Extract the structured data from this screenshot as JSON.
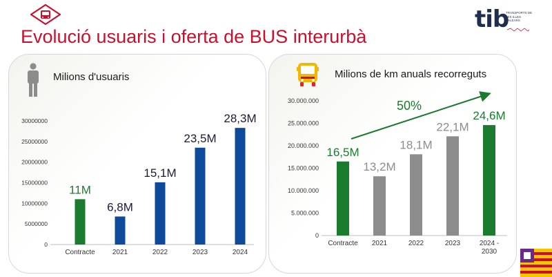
{
  "header": {
    "title": "Evolució usuaris i oferta de BUS interurbà",
    "logo_icon": "bus-sign-icon",
    "brand": {
      "name": "tib",
      "subtitle": "TRANSPORTS DE LES ILLES BALEARS"
    }
  },
  "colors": {
    "title": "#c8102e",
    "green": "#1a7a2e",
    "blue": "#0d4a99",
    "gray": "#8c8c8c"
  },
  "chart_data": [
    {
      "type": "bar",
      "title": "Milions d'usuaris",
      "icon": "person-icon",
      "categories": [
        "Contracte",
        "2021",
        "2022",
        "2023",
        "2024"
      ],
      "values": [
        11000000,
        6800000,
        15100000,
        23500000,
        28300000
      ],
      "data_labels": [
        "11M",
        "6,8M",
        "15,1M",
        "23,5M",
        "28,3M"
      ],
      "colors": [
        "#1a7a2e",
        "#0d4a99",
        "#0d4a99",
        "#0d4a99",
        "#0d4a99"
      ],
      "label_colors": [
        "#1a7a2e",
        "#1a1a3a",
        "#1a1a3a",
        "#1a1a3a",
        "#1a1a3a"
      ],
      "yticks": [
        0,
        5000000,
        10000000,
        15000000,
        20000000,
        25000000,
        30000000
      ],
      "ytick_labels": [
        "0",
        "5000000",
        "10000000",
        "15000000",
        "20000000",
        "25000000",
        "30000000"
      ],
      "ylim": [
        0,
        30000000
      ],
      "grid": false
    },
    {
      "type": "bar",
      "title": "Milions de km anuals recorreguts",
      "icon": "bus-icon",
      "categories": [
        "Contracte",
        "2021",
        "2022",
        "2023",
        "2024 -\n2030"
      ],
      "values": [
        16500000,
        13200000,
        18100000,
        22100000,
        24600000
      ],
      "data_labels": [
        "16,5M",
        "13,2M",
        "18,1M",
        "22,1M",
        "24,6M"
      ],
      "colors": [
        "#1a7a2e",
        "#8c8c8c",
        "#8c8c8c",
        "#8c8c8c",
        "#1a7a2e"
      ],
      "label_colors": [
        "#1a7a2e",
        "#8c8c8c",
        "#8c8c8c",
        "#8c8c8c",
        "#1a7a2e"
      ],
      "yticks": [
        0,
        5000000,
        10000000,
        15000000,
        20000000,
        25000000,
        30000000
      ],
      "ytick_labels": [
        "0",
        "5.000.000",
        "10.000.000",
        "15.000.000",
        "20.000.000",
        "25.000.000",
        "30.000.000"
      ],
      "ylim": [
        0,
        30000000
      ],
      "annotation": "50%",
      "annotation_color": "#1a7a2e",
      "grid": false
    }
  ]
}
